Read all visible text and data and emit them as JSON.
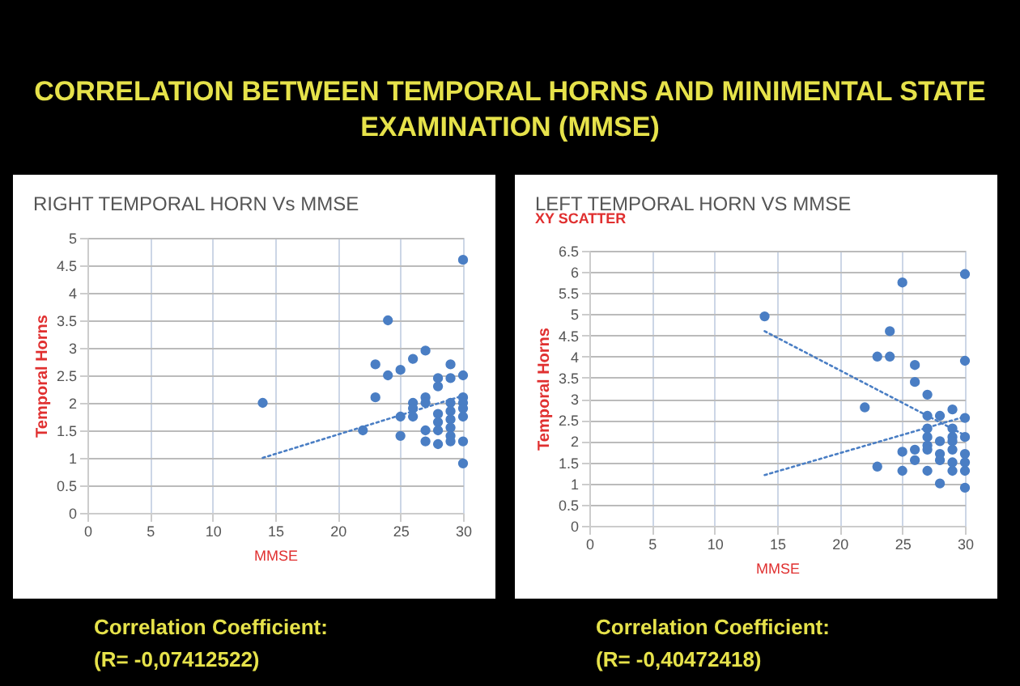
{
  "chart_data": [
    {
      "type": "other",
      "title": "CORRELATION BETWEEN TEMPORAL HORNS AND MINIMENTAL STATE EXAMINATION (MMSE)"
    },
    {
      "type": "scatter",
      "title": "RIGHT TEMPORAL HORN Vs MMSE",
      "xlabel": "MMSE",
      "ylabel": "Temporal Horns",
      "xlim": [
        0,
        30
      ],
      "xticks": [
        0,
        5,
        10,
        15,
        20,
        25,
        30
      ],
      "ylim": [
        0,
        5
      ],
      "yticks": [
        0,
        0.5,
        1,
        1.5,
        2,
        2.5,
        3,
        3.5,
        4,
        4.5,
        5
      ],
      "grid": true,
      "annotations": [
        "Correlation Coefficient:",
        "(R= -0,07412522)"
      ],
      "series": [
        {
          "type": "scatter",
          "marker": "circle",
          "color": "#4a7ec4",
          "x": [
            14,
            22,
            23,
            23,
            24,
            24,
            25,
            25,
            25,
            26,
            26,
            26,
            26,
            27,
            27,
            27,
            27,
            27,
            28,
            28,
            28,
            28,
            28,
            28,
            29,
            29,
            29,
            29,
            29,
            29,
            29,
            29,
            30,
            30,
            30,
            30,
            30,
            30,
            30,
            30
          ],
          "values": [
            2.0,
            1.5,
            2.7,
            2.1,
            3.5,
            2.5,
            2.6,
            1.75,
            1.4,
            2.8,
            2.0,
            1.9,
            1.75,
            2.95,
            2.1,
            2.0,
            1.5,
            1.3,
            2.45,
            2.3,
            1.8,
            1.65,
            1.5,
            1.25,
            2.7,
            2.45,
            2.0,
            1.85,
            1.7,
            1.55,
            1.4,
            1.3,
            4.6,
            2.5,
            2.1,
            2.0,
            1.9,
            1.75,
            1.3,
            0.9
          ]
        },
        {
          "type": "line",
          "marker": "none",
          "color": "#4a7ec4",
          "line_style": "dotted",
          "x": [
            14,
            30
          ],
          "values": [
            1.0,
            2.13
          ]
        }
      ]
    },
    {
      "type": "scatter",
      "title": "LEFT TEMPORAL HORN VS MMSE",
      "subtitle": "XY SCATTER",
      "xlabel": "MMSE",
      "ylabel": "Temporal Horns",
      "xlim": [
        0,
        30
      ],
      "xticks": [
        0,
        5,
        10,
        15,
        20,
        25,
        30
      ],
      "ylim": [
        0,
        6.5
      ],
      "yticks": [
        0,
        0.5,
        1,
        1.5,
        2,
        2.5,
        3,
        3.5,
        4,
        4.5,
        5,
        5.5,
        6,
        6.5
      ],
      "grid": true,
      "annotations": [
        "Correlation Coefficient:",
        "(R=  -0,40472418)"
      ],
      "series": [
        {
          "type": "scatter",
          "marker": "circle",
          "color": "#4a7ec4",
          "x": [
            14,
            22,
            23,
            23,
            24,
            24,
            25,
            25,
            25,
            26,
            26,
            26,
            26,
            27,
            27,
            27,
            27,
            27,
            27,
            27,
            28,
            28,
            28,
            28,
            28,
            29,
            29,
            29,
            29,
            29,
            29,
            29,
            30,
            30,
            30,
            30,
            30,
            30,
            30,
            30
          ],
          "values": [
            4.95,
            2.8,
            4.0,
            1.4,
            4.6,
            4.0,
            5.75,
            1.75,
            1.3,
            3.8,
            3.4,
            1.8,
            1.55,
            3.1,
            2.6,
            2.3,
            2.1,
            1.9,
            1.8,
            1.3,
            2.6,
            2.0,
            1.7,
            1.55,
            1.0,
            2.75,
            2.3,
            2.1,
            2.0,
            1.8,
            1.5,
            1.3,
            5.95,
            3.9,
            2.55,
            2.1,
            1.7,
            1.5,
            1.3,
            0.9
          ]
        },
        {
          "type": "line",
          "marker": "none",
          "color": "#4a7ec4",
          "line_style": "dotted",
          "x": [
            14,
            30
          ],
          "values": [
            4.6,
            2.14
          ]
        },
        {
          "type": "line",
          "marker": "none",
          "color": "#4a7ec4",
          "line_style": "dotted",
          "x": [
            14,
            30
          ],
          "values": [
            1.2,
            2.58
          ]
        }
      ]
    }
  ]
}
